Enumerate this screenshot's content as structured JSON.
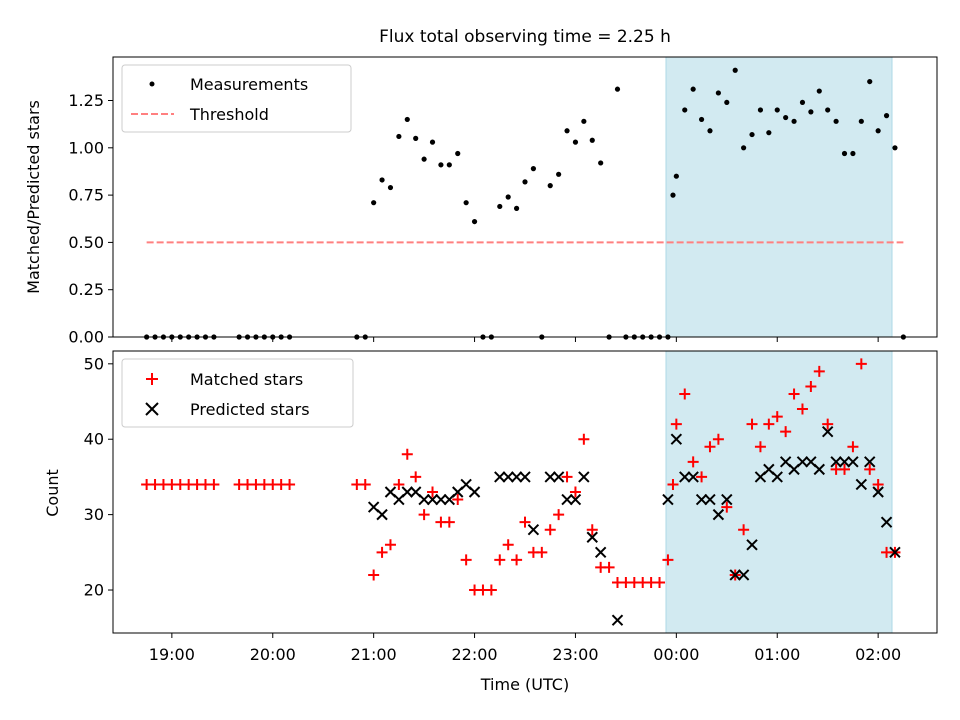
{
  "chart_data": [
    {
      "type": "scatter",
      "title": "Flux total observing time = 2.25 h",
      "ylabel": "Matched/Predicted stars",
      "xlabel": "",
      "ylim": [
        0,
        1.48
      ],
      "yticks": [
        "0.00",
        "0.25",
        "0.50",
        "0.75",
        "1.00",
        "1.25"
      ],
      "ytick_values": [
        0,
        0.25,
        0.5,
        0.75,
        1.0,
        1.25
      ],
      "highlight_span": [
        "2024-01-01 23:55",
        "2024-01-02 02:10"
      ],
      "highlight_color": "#add8e6",
      "legend_position": "upper left",
      "series": [
        {
          "name": "Measurements",
          "marker": "dot",
          "color": "#000000",
          "points": [
            [
              "18:45",
              0
            ],
            [
              "18:50",
              0
            ],
            [
              "18:55",
              0
            ],
            [
              "19:00",
              0
            ],
            [
              "19:05",
              0
            ],
            [
              "19:10",
              0
            ],
            [
              "19:15",
              0
            ],
            [
              "19:20",
              0
            ],
            [
              "19:25",
              0
            ],
            [
              "19:40",
              0
            ],
            [
              "19:45",
              0
            ],
            [
              "19:50",
              0
            ],
            [
              "19:55",
              0
            ],
            [
              "20:00",
              0
            ],
            [
              "20:05",
              0
            ],
            [
              "20:10",
              0
            ],
            [
              "20:50",
              0
            ],
            [
              "20:55",
              0
            ],
            [
              "21:00",
              0.71
            ],
            [
              "21:05",
              0.83
            ],
            [
              "21:10",
              0.79
            ],
            [
              "21:15",
              1.06
            ],
            [
              "21:20",
              1.15
            ],
            [
              "21:25",
              1.05
            ],
            [
              "21:30",
              0.94
            ],
            [
              "21:35",
              1.03
            ],
            [
              "21:40",
              0.91
            ],
            [
              "21:45",
              0.91
            ],
            [
              "21:50",
              0.97
            ],
            [
              "21:55",
              0.71
            ],
            [
              "22:00",
              0.61
            ],
            [
              "22:05",
              0
            ],
            [
              "22:10",
              0
            ],
            [
              "22:15",
              0.69
            ],
            [
              "22:20",
              0.74
            ],
            [
              "22:25",
              0.68
            ],
            [
              "22:30",
              0.82
            ],
            [
              "22:35",
              0.89
            ],
            [
              "22:40",
              0
            ],
            [
              "22:45",
              0.8
            ],
            [
              "22:50",
              0.86
            ],
            [
              "22:55",
              1.09
            ],
            [
              "23:00",
              1.03
            ],
            [
              "23:05",
              1.14
            ],
            [
              "23:10",
              1.04
            ],
            [
              "23:15",
              0.92
            ],
            [
              "23:20",
              0
            ],
            [
              "23:25",
              1.31
            ],
            [
              "23:30",
              0
            ],
            [
              "23:35",
              0
            ],
            [
              "23:40",
              0
            ],
            [
              "23:45",
              0
            ],
            [
              "23:50",
              0
            ],
            [
              "23:55",
              0
            ],
            [
              "23:58",
              0.75
            ],
            [
              "00:00",
              0.85
            ],
            [
              "00:05",
              1.2
            ],
            [
              "00:10",
              1.31
            ],
            [
              "00:15",
              1.15
            ],
            [
              "00:20",
              1.09
            ],
            [
              "00:25",
              1.29
            ],
            [
              "00:30",
              1.24
            ],
            [
              "00:35",
              1.41
            ],
            [
              "00:40",
              1.0
            ],
            [
              "00:45",
              1.07
            ],
            [
              "00:50",
              1.2
            ],
            [
              "00:55",
              1.08
            ],
            [
              "01:00",
              1.2
            ],
            [
              "01:05",
              1.16
            ],
            [
              "01:10",
              1.14
            ],
            [
              "01:15",
              1.24
            ],
            [
              "01:20",
              1.19
            ],
            [
              "01:25",
              1.3
            ],
            [
              "01:30",
              1.2
            ],
            [
              "01:35",
              1.14
            ],
            [
              "01:40",
              0.97
            ],
            [
              "01:45",
              0.97
            ],
            [
              "01:50",
              1.14
            ],
            [
              "01:55",
              1.35
            ],
            [
              "02:00",
              1.09
            ],
            [
              "02:05",
              1.17
            ],
            [
              "02:10",
              1.0
            ],
            [
              "02:15",
              0
            ]
          ]
        },
        {
          "name": "Threshold",
          "marker": "dashed-line",
          "color": "#ff8080",
          "points": [
            [
              "18:45",
              0.5
            ],
            [
              "02:15",
              0.5
            ]
          ]
        }
      ]
    },
    {
      "type": "scatter",
      "title": "",
      "ylabel": "Count",
      "xlabel": "Time (UTC)",
      "ylim": [
        14.3,
        51.7
      ],
      "yticks": [
        "20",
        "30",
        "40",
        "50"
      ],
      "ytick_values": [
        20,
        30,
        40,
        50
      ],
      "xticks": [
        "19:00",
        "20:00",
        "21:00",
        "22:00",
        "23:00",
        "00:00",
        "01:00",
        "02:00"
      ],
      "highlight_span": [
        "2024-01-01 23:55",
        "2024-01-02 02:10"
      ],
      "highlight_color": "#add8e6",
      "legend_position": "upper left",
      "series": [
        {
          "name": "Matched stars",
          "marker": "plus",
          "color": "#ff0000",
          "points": [
            [
              "18:45",
              34
            ],
            [
              "18:50",
              34
            ],
            [
              "18:55",
              34
            ],
            [
              "19:00",
              34
            ],
            [
              "19:05",
              34
            ],
            [
              "19:10",
              34
            ],
            [
              "19:15",
              34
            ],
            [
              "19:20",
              34
            ],
            [
              "19:25",
              34
            ],
            [
              "19:40",
              34
            ],
            [
              "19:45",
              34
            ],
            [
              "19:50",
              34
            ],
            [
              "19:55",
              34
            ],
            [
              "20:00",
              34
            ],
            [
              "20:05",
              34
            ],
            [
              "20:10",
              34
            ],
            [
              "20:50",
              34
            ],
            [
              "20:55",
              34
            ],
            [
              "21:00",
              22
            ],
            [
              "21:05",
              25
            ],
            [
              "21:10",
              26
            ],
            [
              "21:15",
              34
            ],
            [
              "21:20",
              38
            ],
            [
              "21:25",
              35
            ],
            [
              "21:30",
              30
            ],
            [
              "21:35",
              33
            ],
            [
              "21:40",
              29
            ],
            [
              "21:45",
              29
            ],
            [
              "21:50",
              32
            ],
            [
              "21:55",
              24
            ],
            [
              "22:00",
              20
            ],
            [
              "22:05",
              20
            ],
            [
              "22:10",
              20
            ],
            [
              "22:15",
              24
            ],
            [
              "22:20",
              26
            ],
            [
              "22:25",
              24
            ],
            [
              "22:30",
              29
            ],
            [
              "22:35",
              25
            ],
            [
              "22:40",
              25
            ],
            [
              "22:45",
              28
            ],
            [
              "22:50",
              30
            ],
            [
              "22:55",
              35
            ],
            [
              "23:00",
              33
            ],
            [
              "23:05",
              40
            ],
            [
              "23:10",
              28
            ],
            [
              "23:15",
              23
            ],
            [
              "23:20",
              23
            ],
            [
              "23:25",
              21
            ],
            [
              "23:30",
              21
            ],
            [
              "23:35",
              21
            ],
            [
              "23:40",
              21
            ],
            [
              "23:45",
              21
            ],
            [
              "23:50",
              21
            ],
            [
              "23:55",
              24
            ],
            [
              "23:58",
              34
            ],
            [
              "00:00",
              42
            ],
            [
              "00:05",
              46
            ],
            [
              "00:10",
              37
            ],
            [
              "00:15",
              35
            ],
            [
              "00:20",
              39
            ],
            [
              "00:25",
              40
            ],
            [
              "00:30",
              31
            ],
            [
              "00:35",
              22
            ],
            [
              "00:40",
              28
            ],
            [
              "00:45",
              42
            ],
            [
              "00:50",
              39
            ],
            [
              "00:55",
              42
            ],
            [
              "01:00",
              43
            ],
            [
              "01:05",
              41
            ],
            [
              "01:10",
              46
            ],
            [
              "01:15",
              44
            ],
            [
              "01:20",
              47
            ],
            [
              "01:25",
              49
            ],
            [
              "01:30",
              42
            ],
            [
              "01:35",
              36
            ],
            [
              "01:40",
              36
            ],
            [
              "01:45",
              39
            ],
            [
              "01:50",
              50
            ],
            [
              "01:55",
              36
            ],
            [
              "02:00",
              34
            ],
            [
              "02:05",
              25
            ],
            [
              "02:10",
              25
            ]
          ]
        },
        {
          "name": "Predicted stars",
          "marker": "x",
          "color": "#000000",
          "points": [
            [
              "21:00",
              31
            ],
            [
              "21:05",
              30
            ],
            [
              "21:10",
              33
            ],
            [
              "21:15",
              32
            ],
            [
              "21:20",
              33
            ],
            [
              "21:25",
              33
            ],
            [
              "21:30",
              32
            ],
            [
              "21:35",
              32
            ],
            [
              "21:40",
              32
            ],
            [
              "21:45",
              32
            ],
            [
              "21:50",
              33
            ],
            [
              "21:55",
              34
            ],
            [
              "22:00",
              33
            ],
            [
              "22:15",
              35
            ],
            [
              "22:20",
              35
            ],
            [
              "22:25",
              35
            ],
            [
              "22:30",
              35
            ],
            [
              "22:35",
              28
            ],
            [
              "22:45",
              35
            ],
            [
              "22:50",
              35
            ],
            [
              "22:55",
              32
            ],
            [
              "23:00",
              32
            ],
            [
              "23:05",
              35
            ],
            [
              "23:10",
              27
            ],
            [
              "23:15",
              25
            ],
            [
              "23:25",
              16
            ],
            [
              "23:55",
              32
            ],
            [
              "00:00",
              40
            ],
            [
              "00:05",
              35
            ],
            [
              "00:10",
              35
            ],
            [
              "00:15",
              32
            ],
            [
              "00:20",
              32
            ],
            [
              "00:25",
              30
            ],
            [
              "00:30",
              32
            ],
            [
              "00:35",
              22
            ],
            [
              "00:40",
              22
            ],
            [
              "00:45",
              26
            ],
            [
              "00:50",
              35
            ],
            [
              "00:55",
              36
            ],
            [
              "01:00",
              35
            ],
            [
              "01:05",
              37
            ],
            [
              "01:10",
              36
            ],
            [
              "01:15",
              37
            ],
            [
              "01:20",
              37
            ],
            [
              "01:25",
              36
            ],
            [
              "01:30",
              41
            ],
            [
              "01:35",
              37
            ],
            [
              "01:40",
              37
            ],
            [
              "01:45",
              37
            ],
            [
              "01:50",
              34
            ],
            [
              "01:55",
              37
            ],
            [
              "02:00",
              33
            ],
            [
              "02:05",
              29
            ],
            [
              "02:10",
              25
            ]
          ]
        }
      ]
    }
  ]
}
